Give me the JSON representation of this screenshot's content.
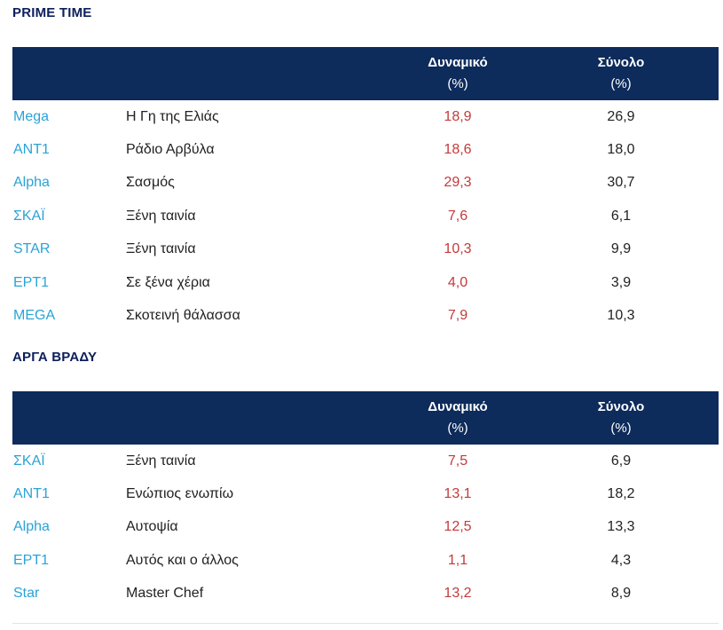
{
  "sections": [
    {
      "title": "PRIME TIME",
      "headers": {
        "dynamic_label": "Δυναμικό",
        "dynamic_unit": "(%)",
        "total_label": "Σύνολο",
        "total_unit": "(%)"
      },
      "rows": [
        {
          "channel": "Mega",
          "show": "Η Γη της Ελιάς",
          "dynamic": "18,9",
          "total": "26,9"
        },
        {
          "channel": "ANT1",
          "show": "Ράδιο Αρβύλα",
          "dynamic": "18,6",
          "total": "18,0"
        },
        {
          "channel": "Alpha",
          "show": "Σασμός",
          "dynamic": "29,3",
          "total": "30,7"
        },
        {
          "channel": "ΣΚΑΪ",
          "show": "Ξένη ταινία",
          "dynamic": "7,6",
          "total": "6,1"
        },
        {
          "channel": "STAR",
          "show": "Ξένη ταινία",
          "dynamic": "10,3",
          "total": "9,9"
        },
        {
          "channel": "ΕΡΤ1",
          "show": "Σε ξένα χέρια",
          "dynamic": "4,0",
          "total": "3,9"
        },
        {
          "channel": "MEGA",
          "show": "Σκοτεινή θάλασσα",
          "dynamic": "7,9",
          "total": "10,3"
        }
      ]
    },
    {
      "title": "ΑΡΓΑ ΒΡΑΔΥ",
      "headers": {
        "dynamic_label": "Δυναμικό",
        "dynamic_unit": "(%)",
        "total_label": "Σύνολο",
        "total_unit": "(%)"
      },
      "rows": [
        {
          "channel": "ΣΚΑΪ",
          "show": "Ξένη ταινία",
          "dynamic": "7,5",
          "total": "6,9"
        },
        {
          "channel": "ANT1",
          "show": "Ενώπιος ενωπίω",
          "dynamic": "13,1",
          "total": "18,2"
        },
        {
          "channel": "Alpha",
          "show": "Αυτοψία",
          "dynamic": "12,5",
          "total": "13,3"
        },
        {
          "channel": "ΕΡΤ1",
          "show": "Αυτός και ο άλλος",
          "dynamic": "1,1",
          "total": "4,3"
        },
        {
          "channel": "Star",
          "show": "Master Chef",
          "dynamic": "13,2",
          "total": "8,9"
        }
      ]
    }
  ],
  "colors": {
    "header_background": "#0d2b5b",
    "section_title": "#0d1f5c",
    "channel_text": "#2aa3d6",
    "dynamic_text": "#c43a3a",
    "body_text": "#222222"
  }
}
